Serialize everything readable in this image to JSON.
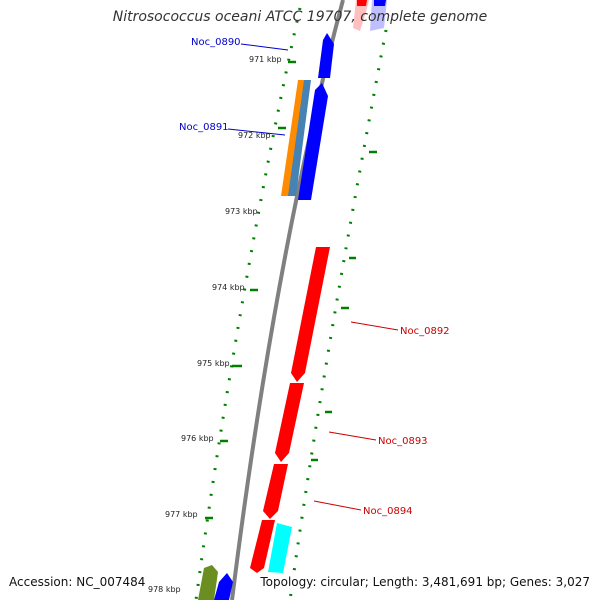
{
  "title": "Nitrosococcus oceani ATCC 19707, complete genome",
  "footer": {
    "accession": "Accession: NC_007484",
    "summary": "Topology: circular; Length: 3,481,691 bp; Genes: 3,027"
  },
  "colors": {
    "forward_strand_cds": "#0000ff",
    "reverse_strand_cds": "#ff0000",
    "orange_feature": "#ff8c00",
    "steelblue_feature": "#4682b4",
    "cyan_feature": "#00ffff",
    "olive_feature": "#6b8e23",
    "backbone": "#808080",
    "gc_dots": "#008000",
    "forward_label": "#0000cc",
    "reverse_label": "#cc0000"
  },
  "ticks": [
    {
      "label": "971 kbp"
    },
    {
      "label": "972 kbp"
    },
    {
      "label": "973 kbp"
    },
    {
      "label": "974 kbp"
    },
    {
      "label": "975 kbp"
    },
    {
      "label": "976 kbp"
    },
    {
      "label": "977 kbp"
    },
    {
      "label": "978 kbp"
    }
  ],
  "gene_labels": [
    {
      "name": "Noc_0890",
      "strand": "forward"
    },
    {
      "name": "Noc_0891",
      "strand": "forward"
    },
    {
      "name": "Noc_0892",
      "strand": "reverse"
    },
    {
      "name": "Noc_0893",
      "strand": "reverse"
    },
    {
      "name": "Noc_0894",
      "strand": "reverse"
    }
  ]
}
